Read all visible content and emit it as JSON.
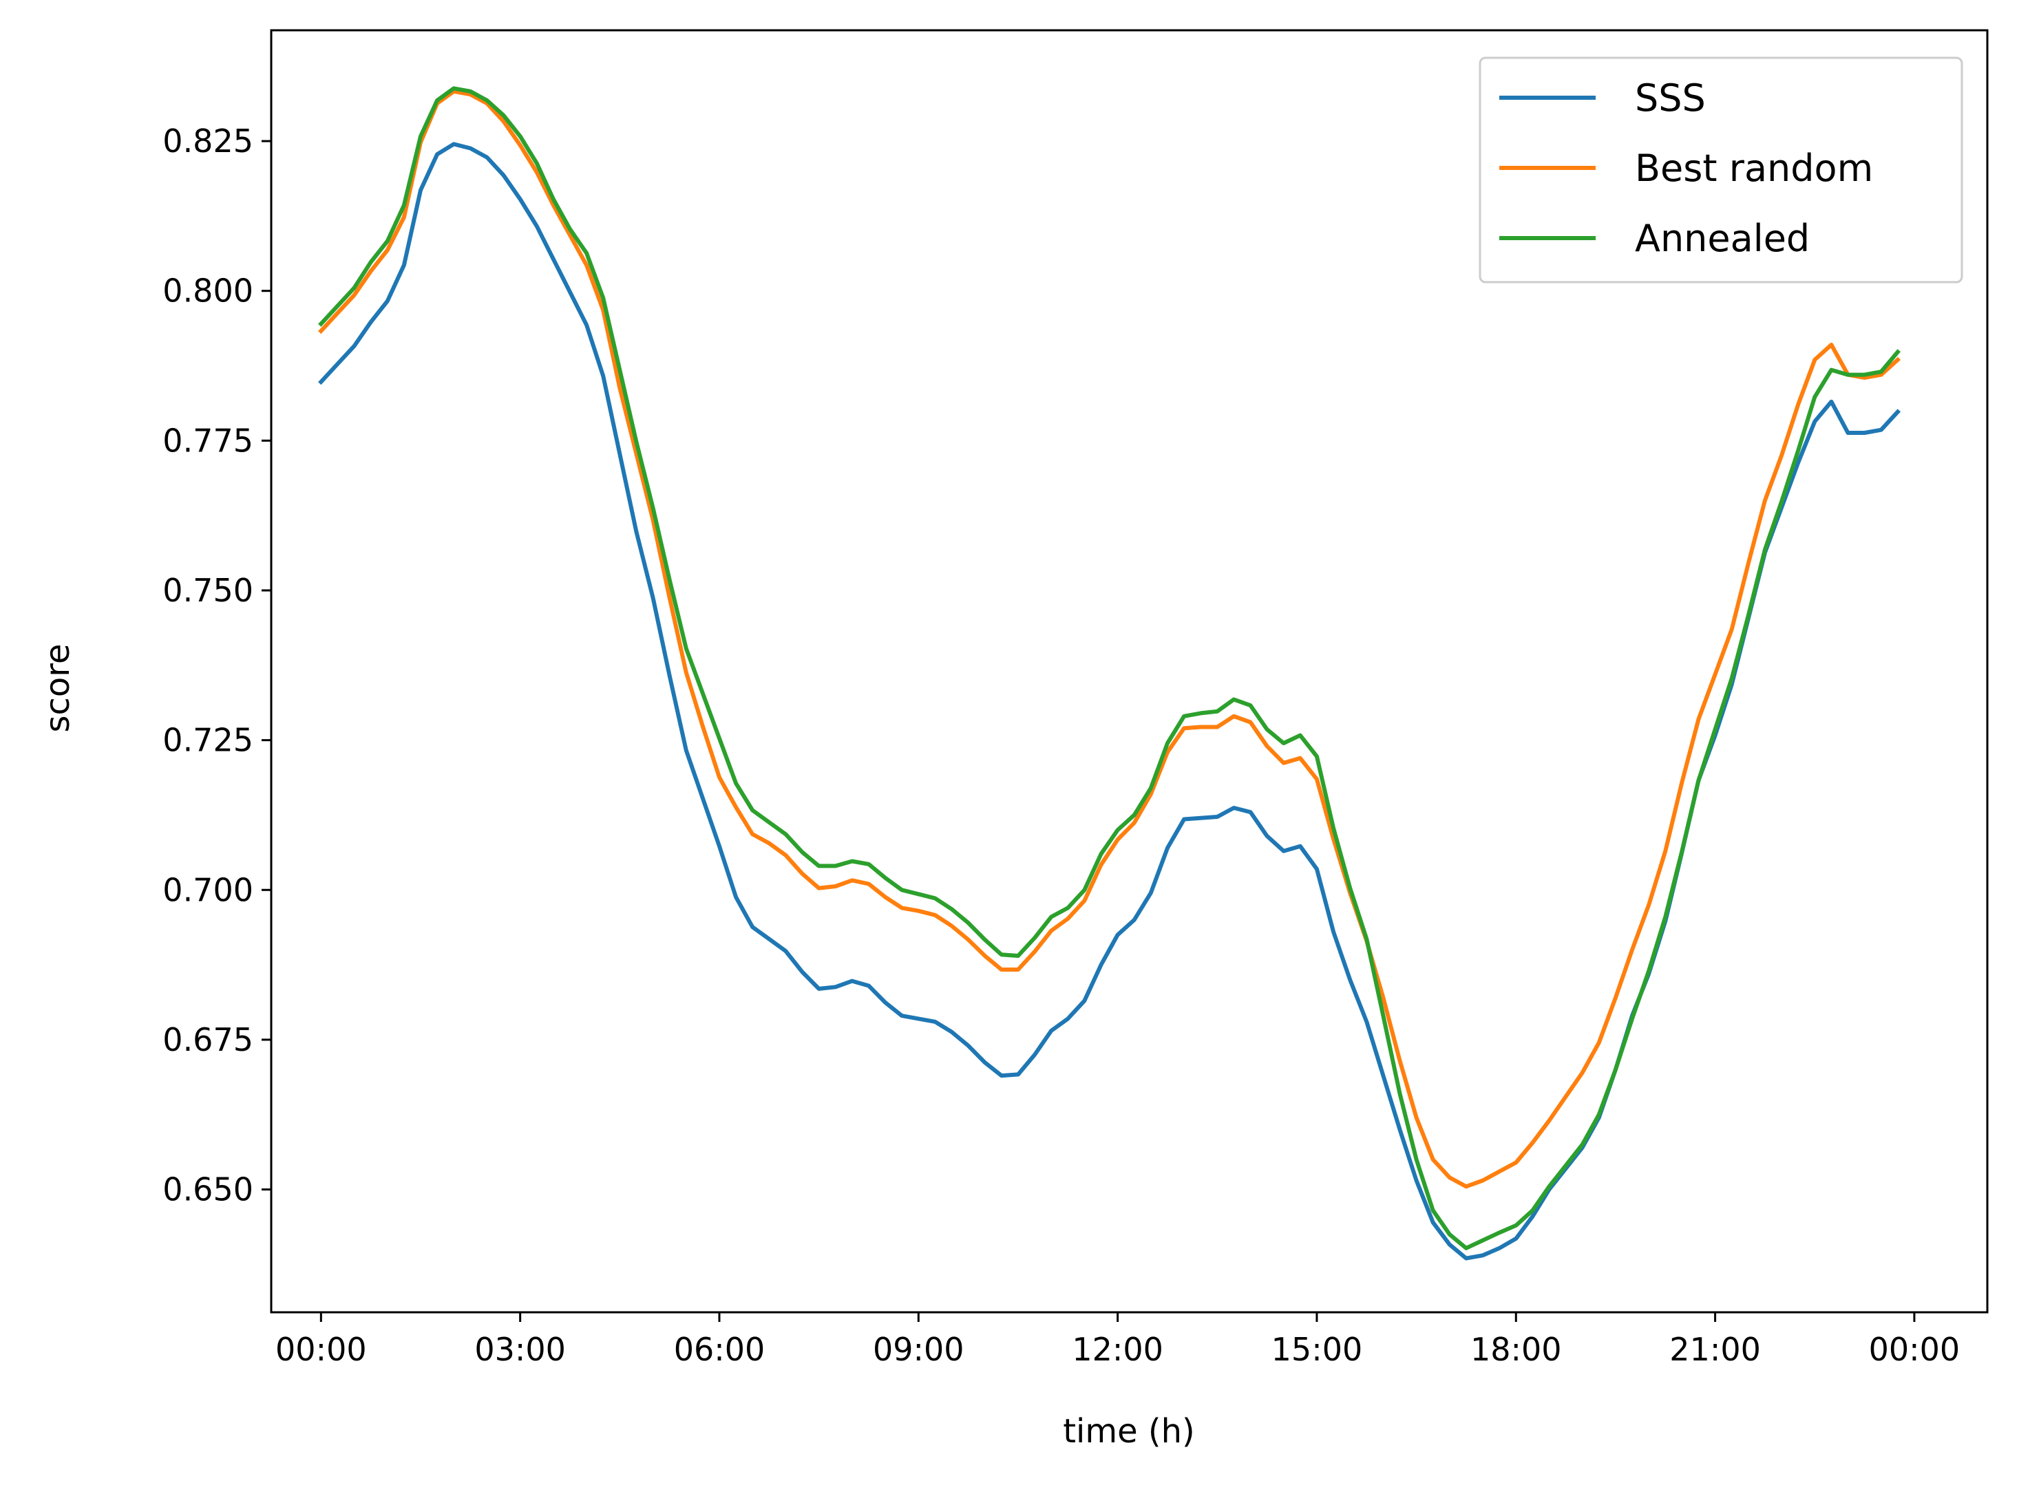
{
  "chart_data": {
    "type": "line",
    "xlabel": "time (h)",
    "ylabel": "score",
    "xlim": [
      -0.75,
      25.1
    ],
    "ylim": [
      0.6295,
      0.8435
    ],
    "x_ticks": [
      {
        "value": 0,
        "label": "00:00"
      },
      {
        "value": 3,
        "label": "03:00"
      },
      {
        "value": 6,
        "label": "06:00"
      },
      {
        "value": 9,
        "label": "09:00"
      },
      {
        "value": 12,
        "label": "12:00"
      },
      {
        "value": 15,
        "label": "15:00"
      },
      {
        "value": 18,
        "label": "18:00"
      },
      {
        "value": 21,
        "label": "21:00"
      },
      {
        "value": 24,
        "label": "00:00"
      }
    ],
    "y_ticks": [
      {
        "value": 0.65,
        "label": "0.650"
      },
      {
        "value": 0.675,
        "label": "0.675"
      },
      {
        "value": 0.7,
        "label": "0.700"
      },
      {
        "value": 0.725,
        "label": "0.725"
      },
      {
        "value": 0.75,
        "label": "0.750"
      },
      {
        "value": 0.775,
        "label": "0.775"
      },
      {
        "value": 0.8,
        "label": "0.800"
      },
      {
        "value": 0.825,
        "label": "0.825"
      }
    ],
    "grid": false,
    "legend": {
      "position": "top-right"
    },
    "x_step_hours": 0.25,
    "series": [
      {
        "name": "SSS",
        "color": "#1f77b4",
        "values": [
          0.7848,
          0.7878,
          0.7908,
          0.7948,
          0.7983,
          0.8043,
          0.8168,
          0.8228,
          0.8245,
          0.8238,
          0.8223,
          0.8193,
          0.8153,
          0.8108,
          0.8053,
          0.7998,
          0.7943,
          0.7858,
          0.7728,
          0.7598,
          0.7488,
          0.7358,
          0.7233,
          0.7153,
          0.7073,
          0.6988,
          0.6938,
          0.6918,
          0.6898,
          0.6863,
          0.6835,
          0.6838,
          0.6848,
          0.684,
          0.6812,
          0.679,
          0.6785,
          0.678,
          0.6763,
          0.674,
          0.6712,
          0.669,
          0.6692,
          0.6725,
          0.6765,
          0.6785,
          0.6815,
          0.6875,
          0.6925,
          0.695,
          0.6995,
          0.707,
          0.7118,
          0.712,
          0.7122,
          0.7137,
          0.713,
          0.709,
          0.7065,
          0.7073,
          0.7035,
          0.693,
          0.685,
          0.678,
          0.669,
          0.66,
          0.6515,
          0.6445,
          0.6408,
          0.6385,
          0.639,
          0.6402,
          0.6418,
          0.6455,
          0.65,
          0.6535,
          0.657,
          0.662,
          0.67,
          0.679,
          0.686,
          0.6948,
          0.7063,
          0.7183,
          0.7258,
          0.7343,
          0.7453,
          0.7563,
          0.7638,
          0.7713,
          0.7782,
          0.7815,
          0.7763,
          0.7763,
          0.7768,
          0.7798
        ]
      },
      {
        "name": "Best random",
        "color": "#ff7f0e",
        "values": [
          0.7933,
          0.7963,
          0.7993,
          0.8033,
          0.8068,
          0.8123,
          0.8248,
          0.8313,
          0.8333,
          0.8328,
          0.8313,
          0.8283,
          0.8243,
          0.8198,
          0.8143,
          0.8093,
          0.8043,
          0.7968,
          0.7838,
          0.7728,
          0.7618,
          0.7488,
          0.7363,
          0.7273,
          0.7188,
          0.7138,
          0.7093,
          0.7078,
          0.7058,
          0.7027,
          0.7003,
          0.7006,
          0.7016,
          0.701,
          0.6988,
          0.697,
          0.6965,
          0.6958,
          0.694,
          0.6917,
          0.689,
          0.6867,
          0.6867,
          0.6897,
          0.6932,
          0.6952,
          0.6982,
          0.7042,
          0.7084,
          0.7112,
          0.716,
          0.723,
          0.727,
          0.7272,
          0.7272,
          0.729,
          0.728,
          0.724,
          0.7212,
          0.722,
          0.7185,
          0.7085,
          0.6995,
          0.6915,
          0.682,
          0.6715,
          0.662,
          0.655,
          0.652,
          0.6505,
          0.6515,
          0.653,
          0.6545,
          0.6578,
          0.6615,
          0.6655,
          0.6695,
          0.6745,
          0.682,
          0.69,
          0.6975,
          0.7065,
          0.718,
          0.7285,
          0.736,
          0.7435,
          0.7545,
          0.765,
          0.7725,
          0.781,
          0.7885,
          0.791,
          0.786,
          0.7855,
          0.786,
          0.7885
        ]
      },
      {
        "name": "Annealed",
        "color": "#2ca02c",
        "values": [
          0.7945,
          0.7975,
          0.8005,
          0.8048,
          0.8083,
          0.8143,
          0.8258,
          0.8318,
          0.8338,
          0.8333,
          0.8318,
          0.8293,
          0.8258,
          0.8213,
          0.8153,
          0.8103,
          0.8063,
          0.7988,
          0.7868,
          0.7748,
          0.7638,
          0.7518,
          0.7403,
          0.7328,
          0.7253,
          0.7178,
          0.7133,
          0.7113,
          0.7093,
          0.7063,
          0.704,
          0.704,
          0.7048,
          0.7043,
          0.702,
          0.7,
          0.6993,
          0.6986,
          0.6968,
          0.6945,
          0.6917,
          0.6892,
          0.689,
          0.692,
          0.6955,
          0.697,
          0.7,
          0.706,
          0.71,
          0.7125,
          0.717,
          0.7245,
          0.729,
          0.7295,
          0.7298,
          0.7318,
          0.7308,
          0.7268,
          0.7245,
          0.7258,
          0.7223,
          0.7103,
          0.7003,
          0.6918,
          0.679,
          0.666,
          0.655,
          0.6465,
          0.6425,
          0.6402,
          0.6415,
          0.6428,
          0.644,
          0.6465,
          0.6505,
          0.654,
          0.6575,
          0.6625,
          0.67,
          0.6785,
          0.6865,
          0.6955,
          0.7065,
          0.7183,
          0.7268,
          0.7353,
          0.7458,
          0.7568,
          0.7648,
          0.7733,
          0.7823,
          0.7868,
          0.786,
          0.786,
          0.7865,
          0.7898
        ]
      }
    ]
  }
}
